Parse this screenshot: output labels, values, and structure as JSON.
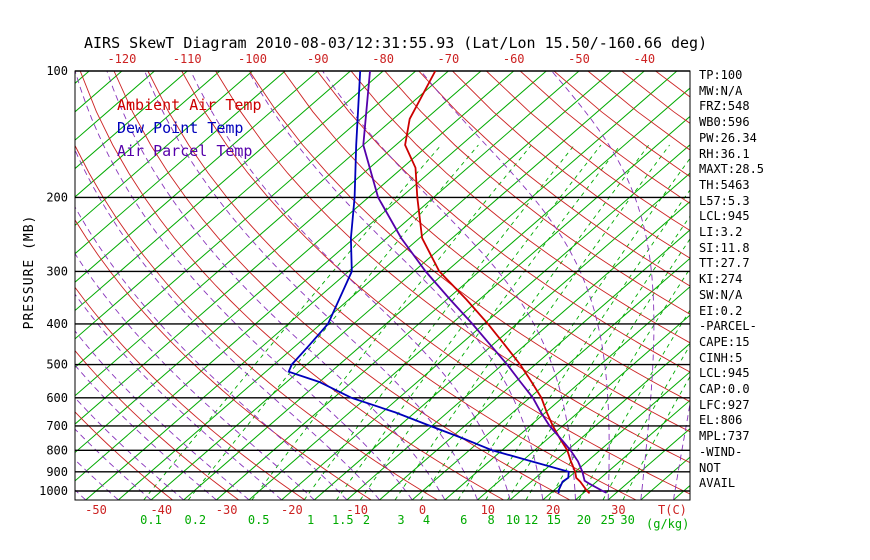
{
  "chart_data": {
    "type": "line",
    "title": "AIRS SkewT Diagram 2010-08-03/12:31:55.93 (Lat/Lon 15.50/-160.66 deg)",
    "y_axis": {
      "label": "PRESSURE (MB)",
      "scale": "log",
      "ticks_mb": [
        100,
        200,
        300,
        400,
        500,
        600,
        700,
        800,
        900,
        1000
      ],
      "range_mb": [
        100,
        1050
      ]
    },
    "x_axis": {
      "temp_unit_label": "T(C)",
      "mixing_unit_label": "(g/kg)",
      "top_ticks_c": [
        -120,
        -110,
        -100,
        -90,
        -80,
        -70,
        -60,
        -50,
        -40
      ],
      "bottom_ticks_c": [
        -50,
        -40,
        -30,
        -20,
        -10,
        0,
        10,
        20,
        30
      ],
      "mixing_ratio_ticks_gkg": [
        0.1,
        0.2,
        0.5,
        1,
        1.5,
        2,
        3,
        4,
        6,
        8,
        10,
        12,
        15,
        20,
        25,
        30
      ]
    },
    "grid": {
      "isotherm_step_c": 5,
      "isotherm_range_c": [
        -150,
        45
      ],
      "dry_adiabat_theta_range_c": [
        -40,
        200
      ],
      "dry_adiabat_step_c": 10,
      "moist_adiabat_start_range_c": [
        -60,
        45
      ],
      "moist_adiabat_step_c": 5
    },
    "series": [
      {
        "name": "Ambient Air Temp",
        "color": "#CC0000",
        "points_p_t": [
          [
            1013,
            26.0
          ],
          [
            1000,
            25.2
          ],
          [
            950,
            22.5
          ],
          [
            930,
            21.2
          ],
          [
            900,
            20.0
          ],
          [
            850,
            17.5
          ],
          [
            800,
            15.0
          ],
          [
            750,
            11.8
          ],
          [
            700,
            8.5
          ],
          [
            650,
            5.2
          ],
          [
            600,
            1.8
          ],
          [
            550,
            -2.5
          ],
          [
            500,
            -7.3
          ],
          [
            450,
            -13.0
          ],
          [
            400,
            -19.4
          ],
          [
            350,
            -27.0
          ],
          [
            300,
            -36.1
          ],
          [
            250,
            -44.6
          ],
          [
            200,
            -52.5
          ],
          [
            170,
            -58.0
          ],
          [
            150,
            -63.6
          ],
          [
            130,
            -67.5
          ],
          [
            100,
            -72.0
          ]
        ]
      },
      {
        "name": "Dew Point Temp",
        "color": "#0000BB",
        "points_p_t": [
          [
            1013,
            21.3
          ],
          [
            1000,
            20.8
          ],
          [
            950,
            19.8
          ],
          [
            930,
            20.0
          ],
          [
            900,
            19.0
          ],
          [
            850,
            11.5
          ],
          [
            800,
            3.5
          ],
          [
            750,
            -3.0
          ],
          [
            700,
            -10.3
          ],
          [
            650,
            -18.0
          ],
          [
            600,
            -27.3
          ],
          [
            550,
            -35.0
          ],
          [
            520,
            -41.5
          ],
          [
            500,
            -42.3
          ],
          [
            450,
            -43.0
          ],
          [
            400,
            -43.9
          ],
          [
            350,
            -46.5
          ],
          [
            300,
            -49.5
          ],
          [
            250,
            -55.5
          ],
          [
            200,
            -62.1
          ],
          [
            150,
            -71.1
          ],
          [
            100,
            -83.5
          ]
        ]
      },
      {
        "name": "Air Parcel Temp",
        "color": "#5500AA",
        "points_p_t": [
          [
            1010,
            28.5
          ],
          [
            1000,
            27.6
          ],
          [
            960,
            24.2
          ],
          [
            945,
            23.0
          ],
          [
            900,
            21.1
          ],
          [
            850,
            18.6
          ],
          [
            800,
            15.5
          ],
          [
            750,
            11.9
          ],
          [
            700,
            8.0
          ],
          [
            650,
            4.3
          ],
          [
            600,
            0.5
          ],
          [
            550,
            -4.2
          ],
          [
            500,
            -9.3
          ],
          [
            450,
            -15.2
          ],
          [
            400,
            -21.8
          ],
          [
            350,
            -29.5
          ],
          [
            300,
            -38.2
          ],
          [
            250,
            -47.8
          ],
          [
            200,
            -58.5
          ],
          [
            150,
            -70.0
          ],
          [
            100,
            -82.0
          ]
        ]
      }
    ]
  },
  "colors": {
    "isotherm": "#00AA00",
    "dry_adiabat": "#CC2222",
    "moist_adiabat": "#8833BB",
    "mixing_ratio": "#00AA00",
    "isobar": "#000000",
    "axis_temp": "#CC2222",
    "axis_mixing": "#00AA00",
    "axis_pressure": "#000000"
  },
  "stats_panel": {
    "lines": [
      "TP:100",
      "MW:N/A",
      "FRZ:548",
      "WB0:596",
      "PW:26.34",
      "RH:36.1",
      "MAXT:28.5",
      "TH:5463",
      "L57:5.3",
      "LCL:945",
      "LI:3.2",
      "SI:11.8",
      "TT:27.7",
      "KI:274",
      "SW:N/A",
      "EI:0.2",
      "-PARCEL-",
      "CAPE:15",
      "CINH:5",
      "LCL:945",
      "CAP:0.0",
      "LFC:927",
      "EL:806",
      "MPL:737",
      "-WIND-",
      "NOT",
      "AVAIL"
    ]
  }
}
